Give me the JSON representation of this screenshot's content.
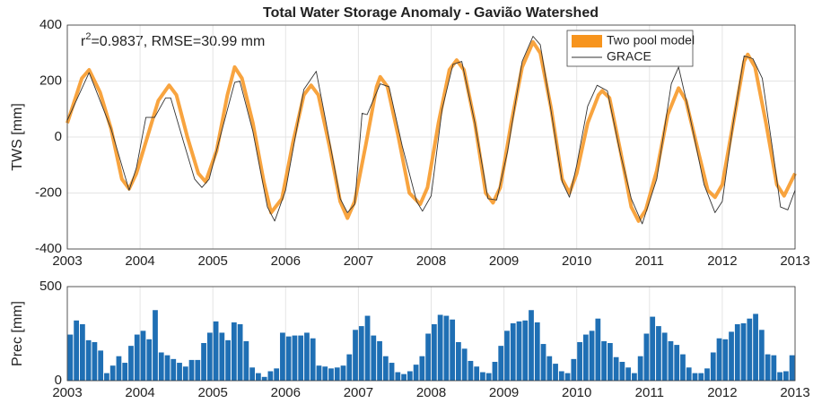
{
  "chart_data": [
    {
      "type": "line",
      "title": "Total Water Storage Anomaly - Gavião Watershed",
      "ylabel": "TWS [mm]",
      "annotation": {
        "base": "r",
        "sup": "2",
        "rest": "=0.9837, RMSE=30.99 mm"
      },
      "xlim": [
        2003,
        2013
      ],
      "xticks": [
        2003,
        2004,
        2005,
        2006,
        2007,
        2008,
        2009,
        2010,
        2011,
        2012,
        2013
      ],
      "ylim": [
        -400,
        400
      ],
      "yticks": [
        -400,
        -200,
        0,
        200,
        400
      ],
      "grid": true,
      "legend": "upper right",
      "series": [
        {
          "name": "Two pool model",
          "color": "#f7941d",
          "x": [
            2003.0,
            2003.1,
            2003.2,
            2003.3,
            2003.45,
            2003.6,
            2003.75,
            2003.85,
            2003.95,
            2004.1,
            2004.25,
            2004.4,
            2004.5,
            2004.65,
            2004.8,
            2004.9,
            2005.05,
            2005.2,
            2005.3,
            2005.4,
            2005.55,
            2005.7,
            2005.8,
            2005.95,
            2006.1,
            2006.25,
            2006.35,
            2006.45,
            2006.6,
            2006.75,
            2006.85,
            2006.95,
            2007.1,
            2007.25,
            2007.3,
            2007.4,
            2007.55,
            2007.7,
            2007.85,
            2007.95,
            2008.1,
            2008.25,
            2008.35,
            2008.45,
            2008.6,
            2008.75,
            2008.85,
            2008.95,
            2009.1,
            2009.25,
            2009.4,
            2009.5,
            2009.65,
            2009.8,
            2009.9,
            2010.0,
            2010.15,
            2010.3,
            2010.35,
            2010.45,
            2010.6,
            2010.75,
            2010.85,
            2010.95,
            2011.1,
            2011.25,
            2011.4,
            2011.5,
            2011.65,
            2011.8,
            2011.9,
            2012.0,
            2012.15,
            2012.3,
            2012.35,
            2012.45,
            2012.6,
            2012.75,
            2012.85,
            2013.0
          ],
          "values": [
            50,
            130,
            210,
            240,
            160,
            30,
            -150,
            -185,
            -130,
            0,
            130,
            185,
            150,
            0,
            -130,
            -160,
            -50,
            150,
            250,
            210,
            50,
            -160,
            -270,
            -220,
            -20,
            150,
            185,
            150,
            -30,
            -230,
            -290,
            -230,
            -30,
            180,
            215,
            180,
            0,
            -200,
            -240,
            -180,
            50,
            240,
            275,
            240,
            50,
            -200,
            -235,
            -180,
            50,
            250,
            340,
            300,
            100,
            -150,
            -200,
            -130,
            50,
            150,
            165,
            140,
            -50,
            -250,
            -300,
            -260,
            -120,
            80,
            175,
            130,
            -30,
            -190,
            -215,
            -170,
            50,
            270,
            295,
            250,
            50,
            -170,
            -210,
            -130
          ]
        },
        {
          "name": "GRACE",
          "color": "#333333",
          "x": [
            2003.0,
            2003.3,
            2003.6,
            2003.85,
            2003.95,
            2004.08,
            2004.2,
            2004.35,
            2004.42,
            2004.6,
            2004.75,
            2004.85,
            2004.95,
            2005.1,
            2005.3,
            2005.37,
            2005.55,
            2005.75,
            2005.85,
            2006.0,
            2006.25,
            2006.42,
            2006.55,
            2006.75,
            2006.85,
            2006.95,
            2007.05,
            2007.12,
            2007.3,
            2007.42,
            2007.6,
            2007.8,
            2007.88,
            2008.0,
            2008.15,
            2008.3,
            2008.42,
            2008.6,
            2008.78,
            2008.9,
            2009.05,
            2009.25,
            2009.4,
            2009.5,
            2009.65,
            2009.8,
            2009.9,
            2010.0,
            2010.15,
            2010.28,
            2010.42,
            2010.6,
            2010.75,
            2010.9,
            2011.1,
            2011.3,
            2011.4,
            2011.55,
            2011.75,
            2011.9,
            2012.0,
            2012.15,
            2012.3,
            2012.42,
            2012.55,
            2012.7,
            2012.8,
            2012.9,
            2013.0
          ],
          "values": [
            60,
            230,
            30,
            -190,
            -110,
            70,
            70,
            140,
            140,
            -20,
            -150,
            -180,
            -150,
            0,
            195,
            200,
            20,
            -250,
            -300,
            -190,
            170,
            235,
            60,
            -220,
            -270,
            -240,
            85,
            80,
            190,
            180,
            -30,
            -230,
            -265,
            -210,
            100,
            260,
            270,
            50,
            -220,
            -225,
            -50,
            270,
            360,
            330,
            90,
            -160,
            -215,
            -100,
            110,
            185,
            165,
            -60,
            -220,
            -310,
            -150,
            190,
            250,
            80,
            -170,
            -270,
            -230,
            50,
            290,
            280,
            210,
            -60,
            -250,
            -260,
            -190
          ]
        }
      ]
    },
    {
      "type": "bar",
      "ylabel": "Prec [mm]",
      "color": "#1f6fb4",
      "xlim": [
        2003,
        2013
      ],
      "xticks": [
        2003,
        2004,
        2005,
        2006,
        2007,
        2008,
        2009,
        2010,
        2011,
        2012,
        2013
      ],
      "ylim": [
        0,
        500
      ],
      "yticks": [
        0,
        500
      ],
      "grid": true,
      "values": [
        245,
        320,
        300,
        215,
        205,
        160,
        40,
        80,
        130,
        95,
        185,
        245,
        265,
        220,
        375,
        150,
        135,
        115,
        95,
        75,
        110,
        110,
        200,
        255,
        315,
        255,
        215,
        310,
        300,
        210,
        70,
        40,
        20,
        50,
        65,
        255,
        235,
        240,
        240,
        255,
        225,
        80,
        75,
        65,
        70,
        80,
        140,
        270,
        290,
        345,
        240,
        210,
        130,
        95,
        45,
        35,
        50,
        85,
        130,
        250,
        300,
        350,
        345,
        325,
        205,
        170,
        105,
        75,
        45,
        40,
        100,
        185,
        265,
        305,
        315,
        320,
        375,
        310,
        195,
        130,
        90,
        50,
        40,
        115,
        205,
        245,
        265,
        330,
        210,
        200,
        125,
        100,
        70,
        40,
        130,
        250,
        340,
        290,
        255,
        210,
        190,
        140,
        70,
        40,
        40,
        65,
        150,
        225,
        220,
        260,
        300,
        305,
        330,
        355,
        270,
        140,
        135,
        45,
        50,
        135
      ]
    }
  ]
}
